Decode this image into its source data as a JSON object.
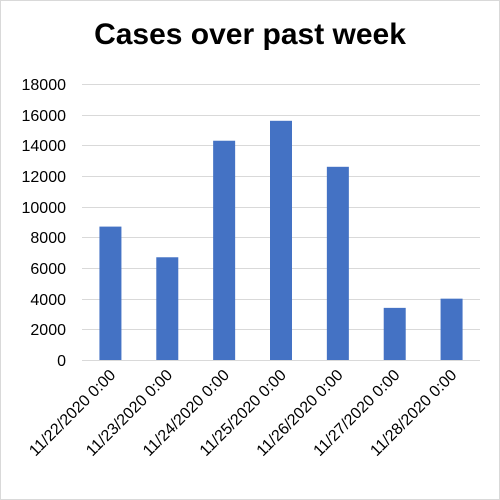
{
  "chart_data": {
    "type": "bar",
    "title": "Cases over past week",
    "categories": [
      "11/22/2020 0:00",
      "11/23/2020 0:00",
      "11/24/2020 0:00",
      "11/25/2020 0:00",
      "11/26/2020 0:00",
      "11/27/2020 0:00",
      "11/28/2020 0:00"
    ],
    "values": [
      8700,
      6700,
      14300,
      15600,
      12600,
      3400,
      4000
    ],
    "ylim": [
      0,
      18000
    ],
    "yticks": [
      0,
      2000,
      4000,
      6000,
      8000,
      10000,
      12000,
      14000,
      16000,
      18000
    ],
    "grid": true,
    "legend": "none",
    "bar_color": "#4472c4",
    "grid_color": "#d9d9d9"
  }
}
